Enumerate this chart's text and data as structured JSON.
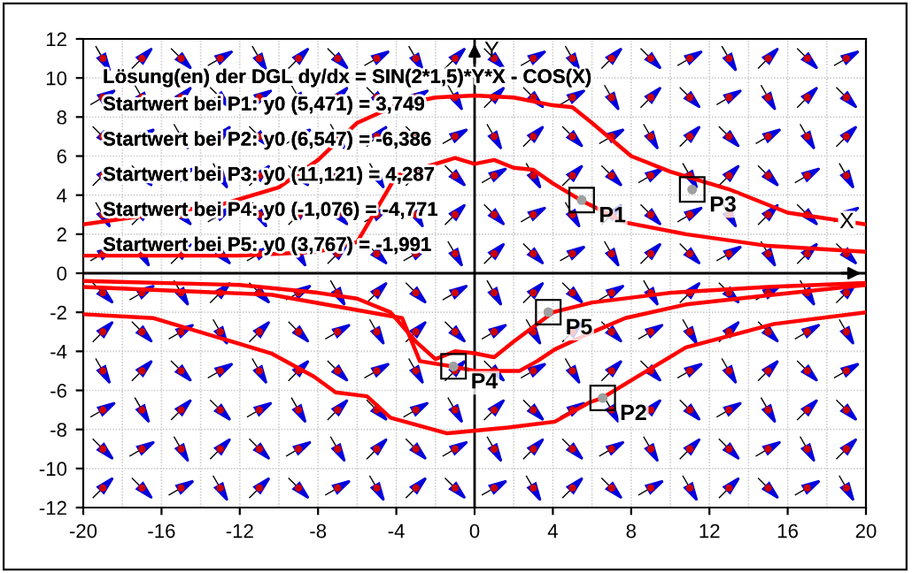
{
  "chart_data": {
    "type": "line",
    "title": "Lösung(en) der DGL dy/dx = SIN(2*1,5)*Y*X - COS(X)",
    "xlabel": "X",
    "ylabel": "Y",
    "xlim": [
      -20,
      20
    ],
    "ylim": [
      -12,
      12
    ],
    "xticks": [
      -20,
      -16,
      -12,
      -8,
      -4,
      0,
      4,
      8,
      12,
      16,
      20
    ],
    "yticks": [
      -12,
      -10,
      -8,
      -6,
      -4,
      -2,
      0,
      2,
      4,
      6,
      8,
      10,
      12
    ],
    "grid": true,
    "marker": "none",
    "line_style": "solid",
    "series": [
      {
        "color": "#ff0000",
        "x": [
          -20,
          -13,
          -10,
          -8,
          -6,
          -4,
          -2,
          0,
          2,
          4,
          5,
          6,
          8,
          10,
          13,
          16,
          20
        ],
        "values": [
          2.5,
          3.5,
          4.4,
          5.8,
          7.7,
          8.6,
          9.0,
          9.1,
          9.0,
          8.6,
          8.5,
          7.7,
          6.0,
          5.2,
          4.3,
          3.1,
          2.5
        ]
      },
      {
        "color": "#ff0000",
        "x": [
          -20,
          -12,
          -8,
          -6,
          -4,
          -2,
          -1,
          0,
          1,
          2,
          3,
          4,
          5.5,
          7.7,
          10.8,
          15,
          20
        ],
        "values": [
          0.9,
          0.9,
          1.1,
          1.6,
          5.0,
          5.6,
          5.9,
          5.6,
          5.8,
          5.4,
          5.3,
          4.6,
          3.7,
          2.6,
          2.0,
          1.4,
          1.1
        ]
      },
      {
        "color": "#ff0000",
        "x": [
          -20,
          -12,
          -8,
          -6,
          -4.3,
          -3,
          -2,
          -1,
          0,
          1,
          2,
          4,
          6,
          10,
          15,
          20
        ],
        "values": [
          -0.4,
          -0.6,
          -1.0,
          -1.3,
          -2.0,
          -3.5,
          -4.4,
          -4.0,
          -4.1,
          -4.3,
          -3.5,
          -2.0,
          -1.5,
          -1.0,
          -0.7,
          -0.5
        ]
      },
      {
        "color": "#ff0000",
        "x": [
          -20,
          -10.4,
          -3.7,
          -2.8,
          -1,
          0,
          2.3,
          3.2,
          4.1,
          5.6,
          7.7,
          10.8,
          15.3,
          20
        ],
        "values": [
          -0.7,
          -1.1,
          -2.3,
          -4.5,
          -4.8,
          -5.0,
          -5.0,
          -4.5,
          -3.9,
          -3.2,
          -2.3,
          -1.6,
          -1.1,
          -0.6
        ]
      },
      {
        "color": "#ff0000",
        "x": [
          -20,
          -16.4,
          -10.4,
          -8.2,
          -7.1,
          -5.5,
          -4.3,
          -1.4,
          1.7,
          4.1,
          5.9,
          6.5,
          8.3,
          10.8,
          15.3,
          20
        ],
        "values": [
          -2.1,
          -2.3,
          -4.1,
          -5.3,
          -6.1,
          -6.3,
          -7.4,
          -8.2,
          -7.9,
          -7.6,
          -6.6,
          -6.4,
          -5.3,
          -3.8,
          -2.6,
          -2.0
        ]
      }
    ],
    "annotations": [
      "Startwert bei P1: y0 (5,471) = 3,749",
      "Startwert bei P2: y0 (6,547) = -6,386",
      "Startwert bei P3: y0 (11,121) = 4,287",
      "Startwert bei P4: y0 (-1,076) = -4,771",
      "Startwert bei P5: y0 (3,767) = -1,991",
      {
        "text": "P1",
        "x": 5.471,
        "y": 3.749
      },
      {
        "text": "P2",
        "x": 6.547,
        "y": -6.386
      },
      {
        "text": "P3",
        "x": 11.121,
        "y": 4.287
      },
      {
        "text": "P4",
        "x": -1.076,
        "y": -4.771
      },
      {
        "text": "P5",
        "x": 3.767,
        "y": -1.991
      }
    ]
  }
}
